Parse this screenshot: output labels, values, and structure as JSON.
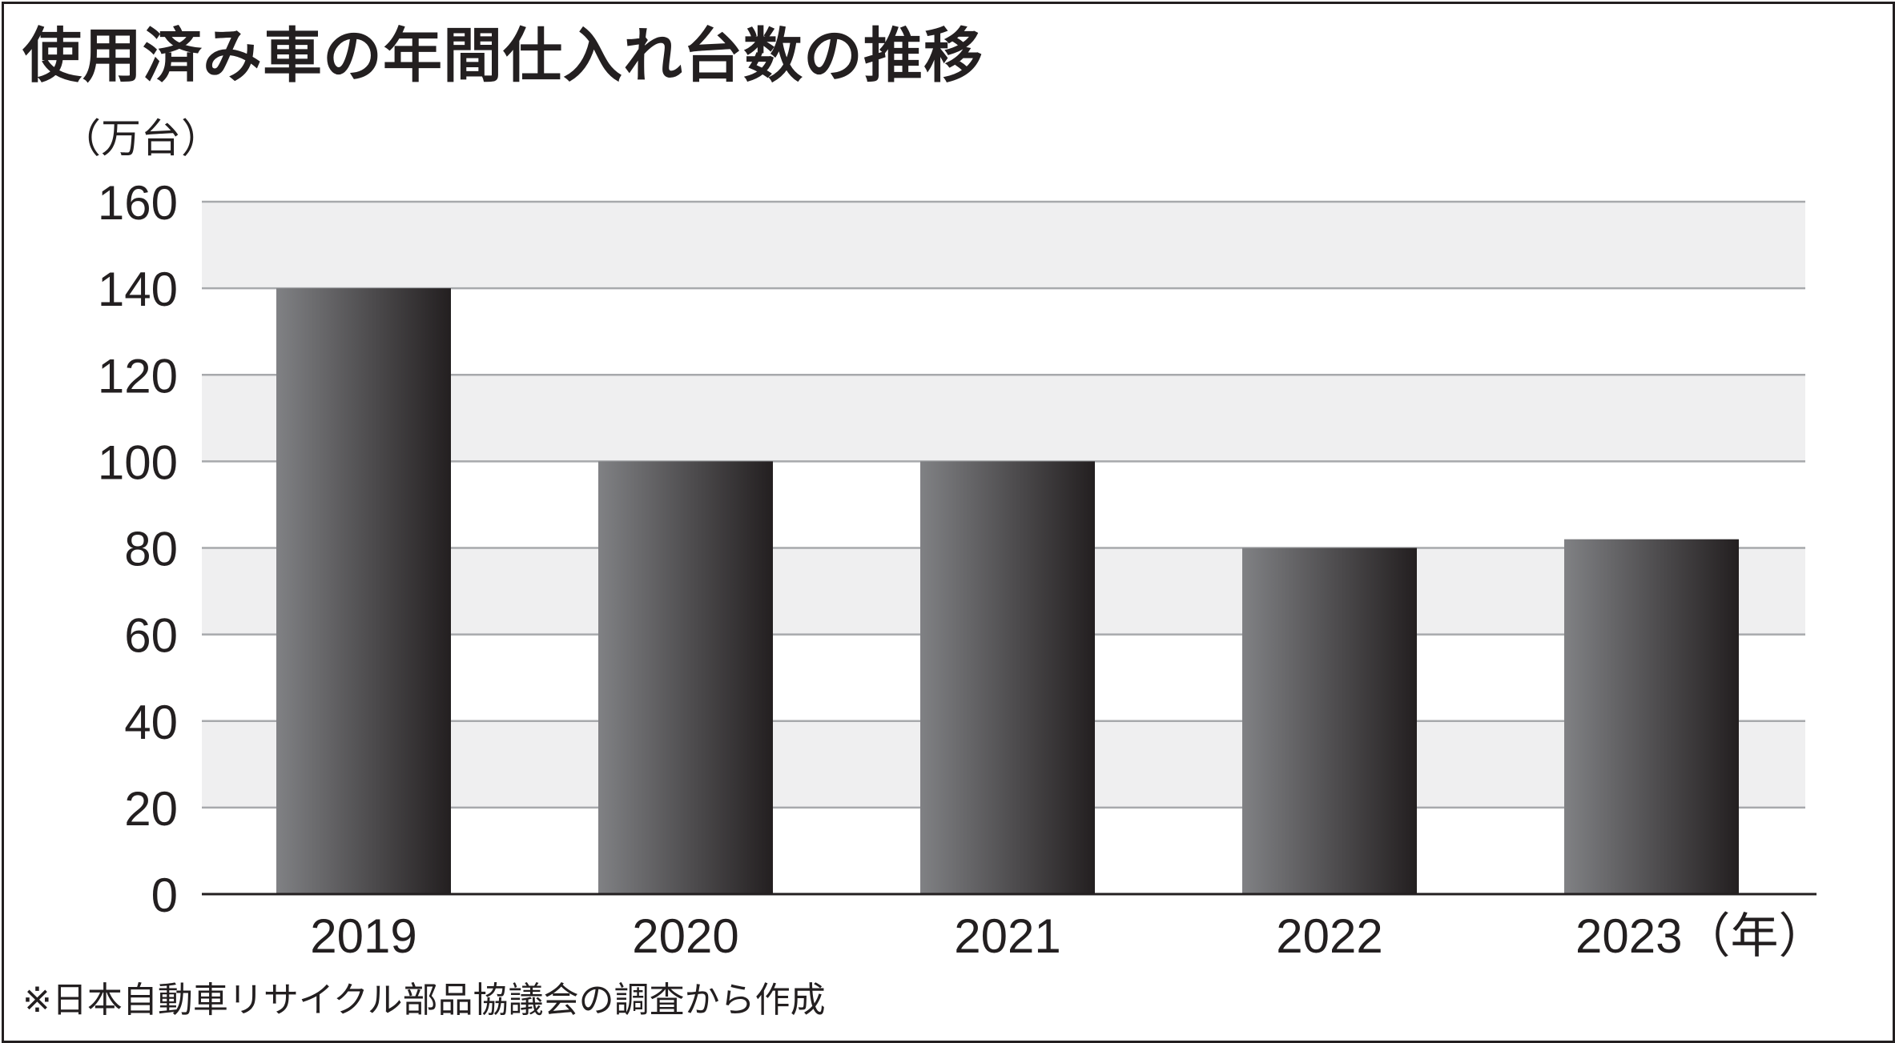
{
  "title": "使用済み車の年間仕入れ台数の推移",
  "unit_label": "（万台）",
  "source_note": "※日本自動車リサイクル部品協議会の調査から作成",
  "colors": {
    "band": "#efeff0",
    "gridline": "#a7a9ac",
    "axis": "#231f20",
    "bar_light": "#808184",
    "bar_dark": "#231f20",
    "text": "#231f20"
  },
  "chart_data": {
    "type": "bar",
    "categories": [
      "2019",
      "2020",
      "2021",
      "2022",
      "2023"
    ],
    "category_tick_labels": [
      "2019",
      "2020",
      "2021",
      "2022",
      "2023（年）"
    ],
    "values": [
      140,
      100,
      100,
      80,
      82
    ],
    "ylabel": "（万台）",
    "xlabel": "（年）",
    "ylim": [
      0,
      160
    ],
    "yticks": [
      0,
      20,
      40,
      60,
      80,
      100,
      120,
      140,
      160
    ],
    "grid": true,
    "legend": "none"
  }
}
